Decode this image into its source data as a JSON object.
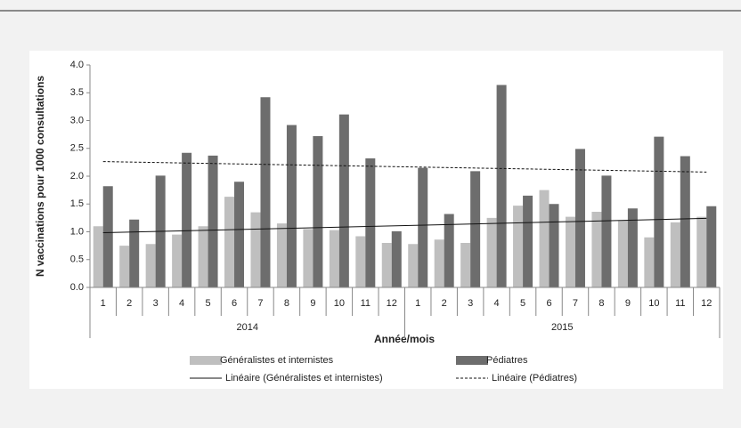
{
  "chart_data": {
    "type": "bar",
    "categories": [
      "1",
      "2",
      "3",
      "4",
      "5",
      "6",
      "7",
      "8",
      "9",
      "10",
      "11",
      "12",
      "1",
      "2",
      "3",
      "4",
      "5",
      "6",
      "7",
      "8",
      "9",
      "10",
      "11",
      "12"
    ],
    "groups": [
      "2014",
      "2015"
    ],
    "xlabel": "Année/mois",
    "ylabel": "N vaccinations pour 1000 consultations",
    "ylim": [
      0,
      4
    ],
    "yticks": [
      {
        "value": 0,
        "label": "0.0"
      },
      {
        "value": 0.5,
        "label": "0.5"
      },
      {
        "value": 1,
        "label": "1.0"
      },
      {
        "value": 1.5,
        "label": "1.5"
      },
      {
        "value": 2,
        "label": "2.0"
      },
      {
        "value": 2.5,
        "label": "2.5"
      },
      {
        "value": 3,
        "label": "3.0"
      },
      {
        "value": 3.5,
        "label": "3.5"
      },
      {
        "value": 4,
        "label": "4.0"
      }
    ],
    "series": [
      {
        "name": "Généralistes et internistes",
        "color": "#bfbfbf",
        "trend_name": "Linéaire (Généralistes et internistes)",
        "trend_dash": "none",
        "values": [
          1.1,
          0.75,
          0.78,
          0.95,
          1.1,
          1.63,
          1.35,
          1.15,
          1.05,
          1.03,
          0.92,
          0.8,
          0.78,
          0.86,
          0.8,
          1.25,
          1.47,
          1.75,
          1.27,
          1.36,
          1.2,
          0.9,
          1.17,
          1.27
        ]
      },
      {
        "name": "Pédiatres",
        "color": "#6d6d6d",
        "trend_name": "Linéaire (Pédiatres)",
        "trend_dash": "3,2",
        "values": [
          1.82,
          1.22,
          2.01,
          2.42,
          2.37,
          1.9,
          3.42,
          2.92,
          2.72,
          3.11,
          2.32,
          1.01,
          2.15,
          1.32,
          2.09,
          3.64,
          1.65,
          1.5,
          2.49,
          2.01,
          1.42,
          2.71,
          2.36,
          1.46
        ]
      }
    ]
  }
}
